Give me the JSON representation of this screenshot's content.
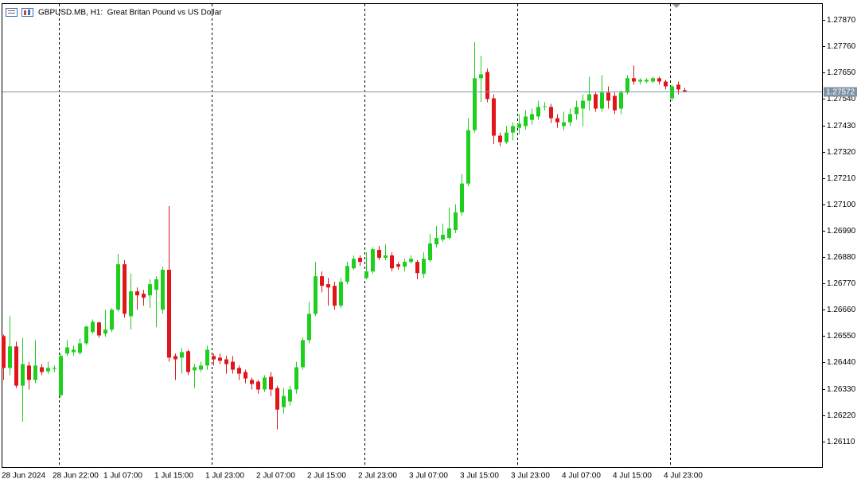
{
  "chart_data": {
    "type": "candlestick",
    "title": "GBPUSD.MB, H1:  Great Britan Pound vs US Dollar",
    "categories": [
      "28 Jun 2024",
      null,
      null,
      null,
      null,
      null,
      null,
      null,
      "28 Jun 22:00",
      null,
      null,
      null,
      null,
      null,
      null,
      null,
      "1 Jul 07:00",
      null,
      null,
      null,
      null,
      null,
      null,
      null,
      "1 Jul 15:00",
      null,
      null,
      null,
      null,
      null,
      null,
      null,
      "1 Jul 23:00",
      null,
      null,
      null,
      null,
      null,
      null,
      null,
      "2 Jul 07:00",
      null,
      null,
      null,
      null,
      null,
      null,
      null,
      "2 Jul 15:00",
      null,
      null,
      null,
      null,
      null,
      null,
      null,
      "2 Jul 23:00",
      null,
      null,
      null,
      null,
      null,
      null,
      null,
      "3 Jul 07:00",
      null,
      null,
      null,
      null,
      null,
      null,
      null,
      "3 Jul 15:00",
      null,
      null,
      null,
      null,
      null,
      null,
      null,
      "3 Jul 23:00",
      null,
      null,
      null,
      null,
      null,
      null,
      null,
      "4 Jul 07:00",
      null,
      null,
      null,
      null,
      null,
      null,
      null,
      "4 Jul 15:00",
      null,
      null,
      null,
      null,
      null,
      null,
      null,
      "4 Jul 23:00",
      null,
      null,
      null
    ],
    "open": [
      1.2655,
      1.26417,
      1.26507,
      1.26343,
      1.26427,
      1.26367,
      1.2642,
      1.26403,
      1.26413,
      1.26303,
      1.26477,
      1.26483,
      1.2648,
      1.2652,
      1.26567,
      1.26607,
      1.2656,
      1.26577,
      1.2666,
      1.2685,
      1.26633,
      1.26737,
      1.26727,
      1.2672,
      1.26743,
      1.2666,
      1.26827,
      1.26467,
      1.2646,
      1.26487,
      1.26407,
      1.2641,
      1.26427,
      1.26467,
      1.2646,
      1.26453,
      1.26443,
      1.26417,
      1.264,
      1.26367,
      1.2636,
      1.26327,
      1.2638,
      1.26333,
      1.26253,
      1.26277,
      1.26327,
      1.2642,
      1.26533,
      1.26643,
      1.268,
      1.26767,
      1.2676,
      1.26677,
      1.26777,
      1.26833,
      1.26877,
      1.26793,
      1.2682,
      1.2691,
      1.26877,
      1.26887,
      1.2685,
      1.2684,
      1.2686,
      1.2686,
      1.2681,
      1.26867,
      1.26933,
      1.26953,
      1.2696,
      1.26993,
      1.27067,
      1.27187,
      1.2741,
      1.27627,
      1.27653,
      1.27543,
      1.27387,
      1.2736,
      1.274,
      1.2742,
      1.27427,
      1.27453,
      1.27467,
      1.27507,
      1.27507,
      1.2746,
      1.27427,
      1.27443,
      1.27477,
      1.275,
      1.27533,
      1.2756,
      1.275,
      1.27567,
      1.27553,
      1.275,
      1.27567,
      1.27627,
      1.27613,
      1.27613,
      1.27613,
      1.27627,
      1.27613,
      1.27543,
      1.276,
      1.27577
    ],
    "high": [
      1.26557,
      1.26633,
      1.26527,
      1.26543,
      1.26443,
      1.26533,
      1.26433,
      1.26443,
      1.26427,
      1.26477,
      1.26533,
      1.2651,
      1.2654,
      1.26593,
      1.2662,
      1.2661,
      1.2666,
      1.26667,
      1.26893,
      1.26867,
      1.2681,
      1.26753,
      1.26743,
      1.26787,
      1.268,
      1.2684,
      1.27093,
      1.26477,
      1.265,
      1.26493,
      1.26433,
      1.26443,
      1.2651,
      1.26477,
      1.26477,
      1.26467,
      1.26467,
      1.26427,
      1.2641,
      1.26377,
      1.26367,
      1.26387,
      1.264,
      1.26343,
      1.26333,
      1.26343,
      1.26443,
      1.26543,
      1.26693,
      1.2686,
      1.2682,
      1.26793,
      1.26777,
      1.26793,
      1.2686,
      1.26887,
      1.26887,
      1.269,
      1.2692,
      1.26927,
      1.26933,
      1.269,
      1.2686,
      1.26873,
      1.26887,
      1.26867,
      1.269,
      1.26977,
      1.2701,
      1.2702,
      1.27087,
      1.271,
      1.27227,
      1.2746,
      1.27777,
      1.2772,
      1.27667,
      1.2756,
      1.274,
      1.27427,
      1.27443,
      1.27477,
      1.27493,
      1.275,
      1.27533,
      1.27527,
      1.2752,
      1.27477,
      1.27487,
      1.275,
      1.27533,
      1.2756,
      1.27633,
      1.27567,
      1.2764,
      1.27593,
      1.27567,
      1.27577,
      1.2764,
      1.2768,
      1.27627,
      1.27627,
      1.27633,
      1.27633,
      1.2762,
      1.276,
      1.27613,
      1.27587
    ],
    "low": [
      1.26367,
      1.26387,
      1.26333,
      1.26193,
      1.26327,
      1.26353,
      1.26387,
      1.26393,
      1.264,
      1.26293,
      1.26467,
      1.26467,
      1.26473,
      1.26513,
      1.2656,
      1.26543,
      1.26547,
      1.26567,
      1.26653,
      1.26627,
      1.26577,
      1.2666,
      1.26677,
      1.26667,
      1.26587,
      1.26643,
      1.26443,
      1.26367,
      1.26393,
      1.26387,
      1.26333,
      1.264,
      1.2641,
      1.26427,
      1.26433,
      1.26393,
      1.26393,
      1.26367,
      1.26353,
      1.26327,
      1.2631,
      1.26317,
      1.263,
      1.2616,
      1.26227,
      1.2626,
      1.2631,
      1.2641,
      1.2652,
      1.26633,
      1.26733,
      1.26677,
      1.2666,
      1.26667,
      1.26767,
      1.26827,
      1.26843,
      1.26787,
      1.2681,
      1.26867,
      1.26867,
      1.2682,
      1.26827,
      1.2682,
      1.26853,
      1.26787,
      1.26793,
      1.2686,
      1.2692,
      1.26943,
      1.26953,
      1.2698,
      1.27053,
      1.27177,
      1.274,
      1.27527,
      1.27527,
      1.27353,
      1.27343,
      1.27353,
      1.27367,
      1.27393,
      1.27413,
      1.27433,
      1.27453,
      1.27493,
      1.2744,
      1.2742,
      1.2741,
      1.27427,
      1.27453,
      1.27427,
      1.27493,
      1.27487,
      1.27487,
      1.275,
      1.27477,
      1.27477,
      1.2756,
      1.276,
      1.276,
      1.27607,
      1.27607,
      1.276,
      1.2758,
      1.27533,
      1.2756,
      1.27567
    ],
    "close": [
      1.26417,
      1.26507,
      1.26343,
      1.26433,
      1.26367,
      1.26427,
      1.264,
      1.26417,
      1.26417,
      1.26467,
      1.26503,
      1.26493,
      1.2652,
      1.2659,
      1.2661,
      1.26553,
      1.26577,
      1.2666,
      1.2685,
      1.26643,
      1.26737,
      1.2672,
      1.2671,
      1.26767,
      1.26787,
      1.26827,
      1.2646,
      1.26453,
      1.26483,
      1.264,
      1.2642,
      1.26427,
      1.26493,
      1.26453,
      1.26447,
      1.26433,
      1.2641,
      1.26393,
      1.26373,
      1.2635,
      1.26327,
      1.26377,
      1.26327,
      1.26243,
      1.263,
      1.26327,
      1.2642,
      1.26533,
      1.26643,
      1.268,
      1.2676,
      1.26753,
      1.26677,
      1.26777,
      1.26843,
      1.26873,
      1.2686,
      1.2682,
      1.26913,
      1.26877,
      1.26887,
      1.26833,
      1.2684,
      1.2686,
      1.26873,
      1.26813,
      1.26873,
      1.26937,
      1.2696,
      1.26973,
      1.27,
      1.27067,
      1.27187,
      1.2741,
      1.27627,
      1.27643,
      1.2754,
      1.27387,
      1.2736,
      1.274,
      1.27427,
      1.27437,
      1.27467,
      1.27477,
      1.27507,
      1.2751,
      1.2746,
      1.27443,
      1.27443,
      1.27477,
      1.27507,
      1.27533,
      1.2756,
      1.275,
      1.27567,
      1.27533,
      1.27493,
      1.27567,
      1.27627,
      1.27613,
      1.2762,
      1.2762,
      1.27627,
      1.27613,
      1.27593,
      1.27593,
      1.2758,
      1.27572
    ],
    "up_color": "#1ecf1e",
    "down_color": "#e0161b",
    "last_price": 1.27572,
    "last_price_color": "#7f93a6",
    "ylim": [
      1.26003,
      1.27937
    ],
    "yticks": [
      {
        "value": 1.2611,
        "label": "1.26110"
      },
      {
        "value": 1.2622,
        "label": "1.26220"
      },
      {
        "value": 1.2633,
        "label": "1.26330"
      },
      {
        "value": 1.2644,
        "label": "1.26440"
      },
      {
        "value": 1.2655,
        "label": "1.26550"
      },
      {
        "value": 1.2666,
        "label": "1.26660"
      },
      {
        "value": 1.2677,
        "label": "1.26770"
      },
      {
        "value": 1.2688,
        "label": "1.26880"
      },
      {
        "value": 1.2699,
        "label": "1.26990"
      },
      {
        "value": 1.271,
        "label": "1.27100"
      },
      {
        "value": 1.2721,
        "label": "1.27210"
      },
      {
        "value": 1.2732,
        "label": "1.27320"
      },
      {
        "value": 1.2743,
        "label": "1.27430"
      },
      {
        "value": 1.2754,
        "label": "1.27540"
      },
      {
        "value": 1.2765,
        "label": "1.27650"
      },
      {
        "value": 1.2776,
        "label": "1.27760"
      },
      {
        "value": 1.2787,
        "label": "1.27870"
      }
    ],
    "grid": false
  }
}
